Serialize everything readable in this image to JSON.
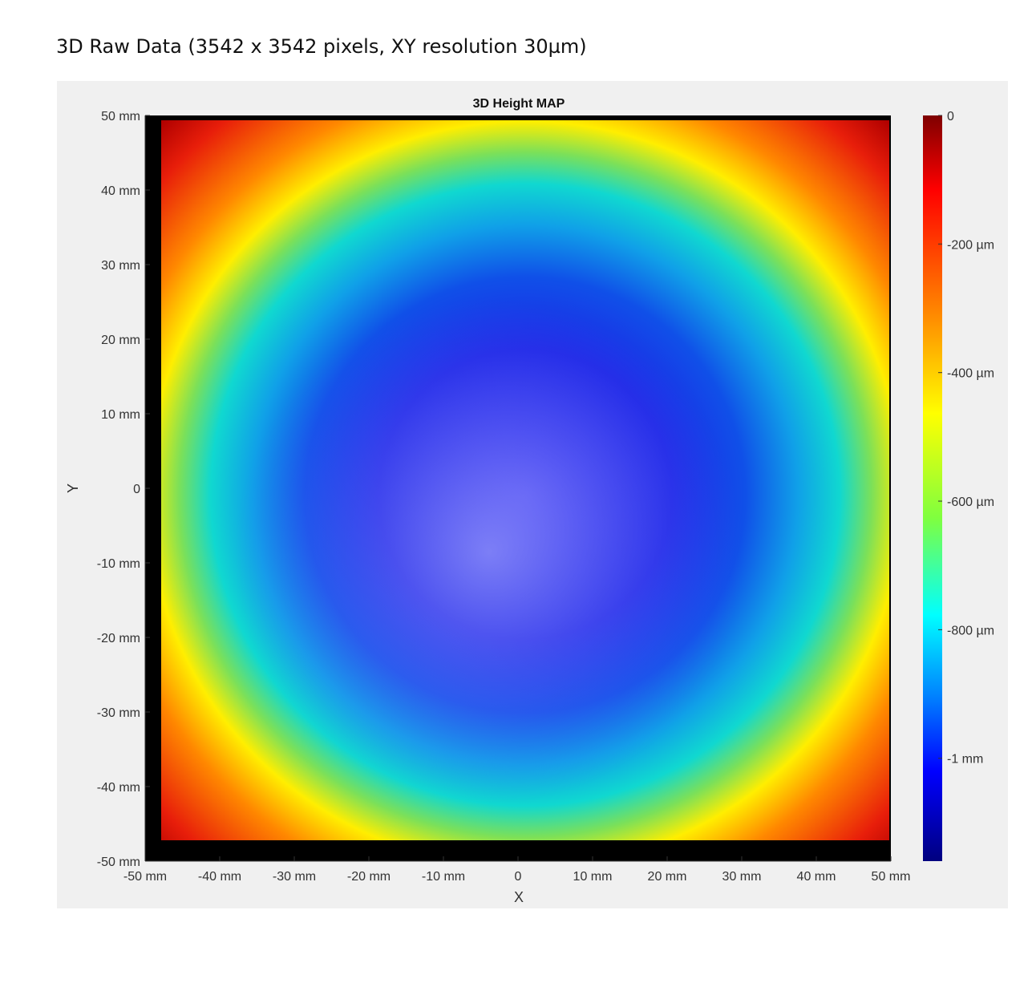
{
  "caption": "3D Raw Data  (3542 x 3542 pixels, XY resolution 30µm)",
  "chart_data": {
    "type": "heatmap",
    "title": "3D Height MAP",
    "xlabel": "X",
    "ylabel": "Y",
    "xlim": [
      -50,
      50
    ],
    "ylim": [
      -50,
      50
    ],
    "x_ticks": [
      "-50 mm",
      "-40 mm",
      "-30 mm",
      "-20 mm",
      "-10 mm",
      "0",
      "10 mm",
      "20 mm",
      "30 mm",
      "40 mm",
      "50 mm"
    ],
    "y_ticks": [
      "50 mm",
      "40 mm",
      "30 mm",
      "20 mm",
      "10 mm",
      "0",
      "-10 mm",
      "-20 mm",
      "-30 mm",
      "-40 mm",
      "-50 mm"
    ],
    "colorbar": {
      "range_um": [
        -1160,
        0
      ],
      "ticks": [
        {
          "value": 0,
          "label": "0"
        },
        {
          "value": -200,
          "label": "-200 µm"
        },
        {
          "value": -400,
          "label": "-400 µm"
        },
        {
          "value": -600,
          "label": "-600 µm"
        },
        {
          "value": -800,
          "label": "-800 µm"
        },
        {
          "value": -1000,
          "label": "-1 mm"
        }
      ],
      "colormap": [
        "#7f0000",
        "#ff0000",
        "#ffff00",
        "#00ffff",
        "#0000ff",
        "#00007f"
      ]
    },
    "surface_description": "bowl-shaped height map: edges/corners near 0, center depressed to about -1 mm"
  }
}
